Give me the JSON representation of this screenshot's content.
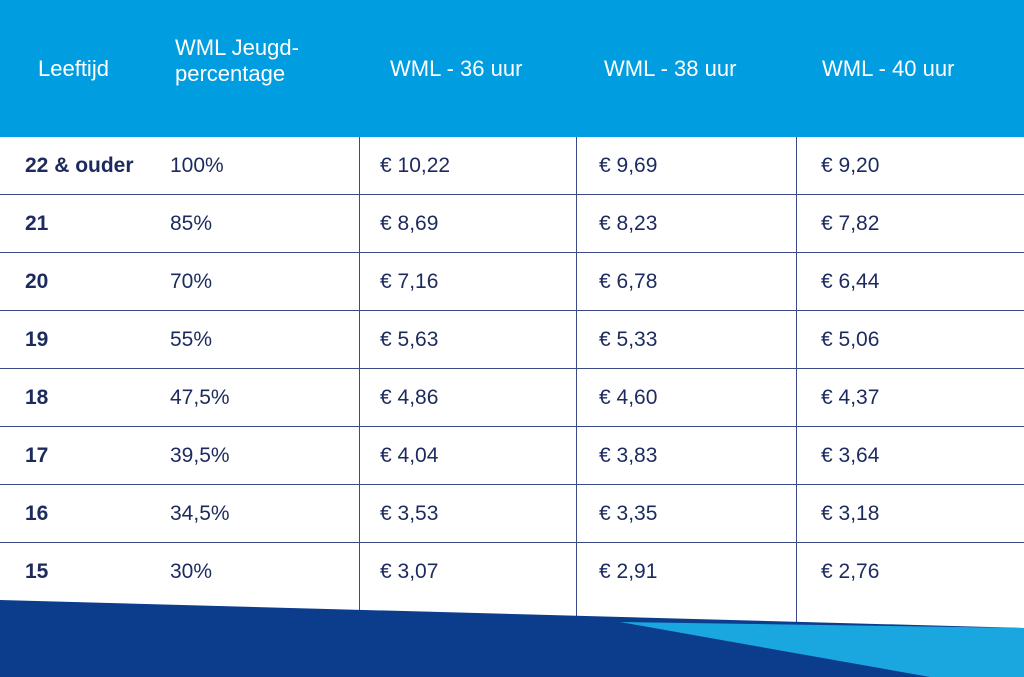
{
  "table": {
    "headers": [
      "Leeftijd",
      "WML Jeugd-\npercentage",
      "WML - 36 uur",
      "WML - 38 uur",
      "WML - 40 uur"
    ],
    "rows": [
      [
        "22 & ouder",
        "100%",
        "€ 10,22",
        "€ 9,69",
        "€ 9,20"
      ],
      [
        "21",
        "85%",
        "€ 8,69",
        "€ 8,23",
        "€ 7,82"
      ],
      [
        "20",
        "70%",
        "€ 7,16",
        "€ 6,78",
        "€ 6,44"
      ],
      [
        "19",
        "55%",
        "€ 5,63",
        "€ 5,33",
        "€ 5,06"
      ],
      [
        "18",
        "47,5%",
        "€ 4,86",
        "€ 4,60",
        "€ 4,37"
      ],
      [
        "17",
        "39,5%",
        "€ 4,04",
        "€ 3,83",
        "€ 3,64"
      ],
      [
        "16",
        "34,5%",
        "€ 3,53",
        "€ 3,35",
        "€ 3,18"
      ],
      [
        "15",
        "30%",
        "€ 3,07",
        "€ 2,91",
        "€ 2,76"
      ]
    ]
  },
  "colors": {
    "header_bg": "#009de0",
    "text": "#1c2a5e",
    "footer_dark": "#0b3d8c",
    "footer_light": "#1aa7e0"
  }
}
